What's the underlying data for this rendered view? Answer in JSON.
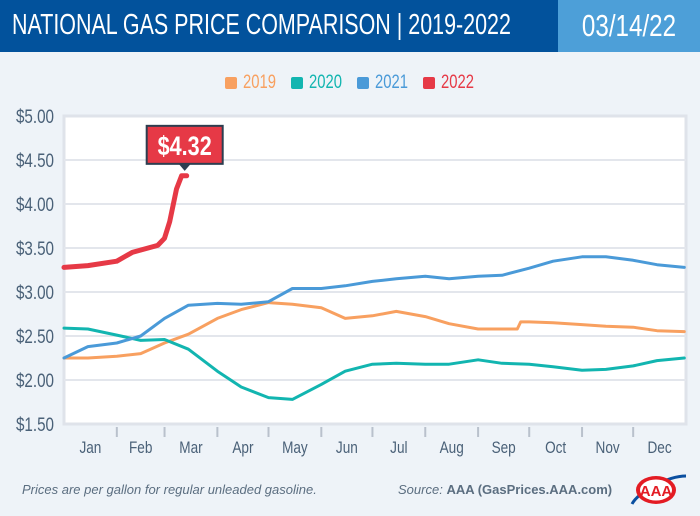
{
  "header": {
    "title": "NATIONAL GAS PRICE COMPARISON | 2019-2022",
    "date": "03/14/22"
  },
  "footer": {
    "note": "Prices are per gallon for regular unleaded gasoline.",
    "source_label": "Source:",
    "source_value": "AAA (GasPrices.AAA.com)",
    "logo": "AAA"
  },
  "colors": {
    "2019": "#f8a060",
    "2020": "#12b5b0",
    "2021": "#4a9ad8",
    "2022": "#e63946",
    "header": "#02529c",
    "date_box": "#4d9fd8"
  },
  "chart_data": {
    "type": "line",
    "title": "NATIONAL GAS PRICE COMPARISON | 2019-2022",
    "xlabel": "",
    "ylabel": "",
    "ylim": [
      1.5,
      5.0
    ],
    "yticks": [
      "$1.50",
      "$2.00",
      "$2.50",
      "$3.00",
      "$3.50",
      "$4.00",
      "$4.50",
      "$5.00"
    ],
    "x_ticks": [
      "Jan",
      "Feb",
      "Mar",
      "Apr",
      "May",
      "Jun",
      "Jul",
      "Aug",
      "Sep",
      "Oct",
      "Nov",
      "Dec"
    ],
    "grid": true,
    "legend": "top-center",
    "annotation": {
      "text": "$4.32",
      "series": "2022",
      "x": "03-14",
      "y": 4.32
    },
    "series": [
      {
        "name": "2019",
        "x": [
          "01-01",
          "01-15",
          "02-01",
          "02-15",
          "03-01",
          "03-15",
          "04-01",
          "04-15",
          "05-01",
          "05-15",
          "06-01",
          "06-15",
          "07-01",
          "07-15",
          "08-01",
          "08-15",
          "09-01",
          "09-24",
          "09-26",
          "10-01",
          "10-15",
          "11-01",
          "11-15",
          "12-01",
          "12-15",
          "12-31"
        ],
        "y": [
          2.25,
          2.25,
          2.27,
          2.3,
          2.42,
          2.52,
          2.7,
          2.8,
          2.88,
          2.86,
          2.82,
          2.7,
          2.73,
          2.78,
          2.72,
          2.64,
          2.58,
          2.58,
          2.66,
          2.66,
          2.65,
          2.63,
          2.61,
          2.6,
          2.56,
          2.55
        ]
      },
      {
        "name": "2020",
        "x": [
          "01-01",
          "01-15",
          "02-01",
          "02-15",
          "03-01",
          "03-15",
          "04-01",
          "04-15",
          "05-01",
          "05-15",
          "06-01",
          "06-15",
          "07-01",
          "07-15",
          "08-01",
          "08-15",
          "09-01",
          "09-15",
          "10-01",
          "10-15",
          "11-01",
          "11-15",
          "12-01",
          "12-15",
          "12-31"
        ],
        "y": [
          2.59,
          2.58,
          2.51,
          2.45,
          2.46,
          2.35,
          2.1,
          1.92,
          1.8,
          1.78,
          1.95,
          2.1,
          2.18,
          2.19,
          2.18,
          2.18,
          2.23,
          2.19,
          2.18,
          2.15,
          2.11,
          2.12,
          2.16,
          2.22,
          2.25
        ]
      },
      {
        "name": "2021",
        "x": [
          "01-01",
          "01-15",
          "02-01",
          "02-15",
          "03-01",
          "03-15",
          "04-01",
          "04-15",
          "05-01",
          "05-15",
          "06-01",
          "06-15",
          "07-01",
          "07-15",
          "08-01",
          "08-15",
          "09-01",
          "09-15",
          "10-01",
          "10-15",
          "11-01",
          "11-15",
          "12-01",
          "12-15",
          "12-31"
        ],
        "y": [
          2.25,
          2.38,
          2.42,
          2.5,
          2.7,
          2.85,
          2.87,
          2.86,
          2.89,
          3.04,
          3.04,
          3.07,
          3.12,
          3.15,
          3.18,
          3.15,
          3.18,
          3.19,
          3.27,
          3.35,
          3.4,
          3.4,
          3.36,
          3.31,
          3.28
        ]
      },
      {
        "name": "2022",
        "x": [
          "01-01",
          "01-15",
          "02-01",
          "02-10",
          "02-25",
          "03-01",
          "03-04",
          "03-08",
          "03-11",
          "03-14"
        ],
        "y": [
          3.28,
          3.3,
          3.35,
          3.45,
          3.53,
          3.61,
          3.8,
          4.17,
          4.32,
          4.32
        ]
      }
    ]
  }
}
